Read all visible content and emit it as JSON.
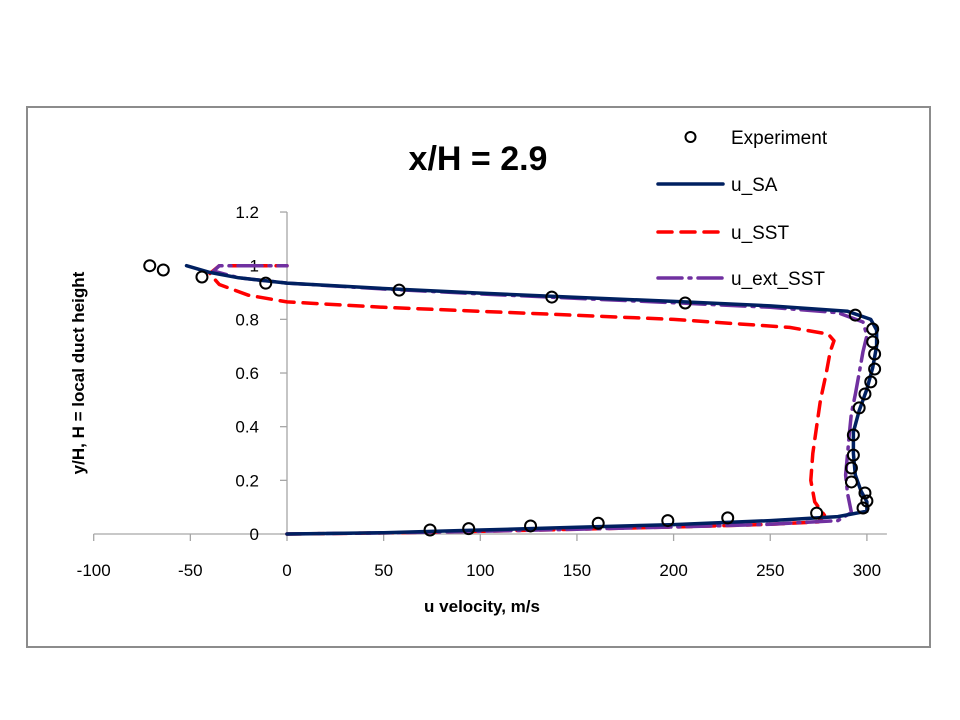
{
  "chart_data": {
    "type": "line",
    "title": "x/H = 2.9",
    "xlabel": "u velocity, m/s",
    "ylabel": "y/H, H = local duct height",
    "xlim": [
      -100,
      300
    ],
    "ylim": [
      0,
      1.2
    ],
    "x_ticks": [
      -100,
      -50,
      0,
      50,
      100,
      150,
      200,
      250,
      300
    ],
    "x_tick_labels": [
      "-100",
      "-50",
      "0",
      "50",
      "100",
      "150",
      "200",
      "250",
      "300"
    ],
    "y_ticks": [
      0,
      0.2,
      0.4,
      0.6,
      0.8,
      1.0,
      1.2
    ],
    "y_tick_labels": [
      "0",
      "0.2",
      "0.4",
      "0.6",
      "0.8",
      "1",
      "1.2"
    ],
    "grid": false,
    "legend_position": "top-right",
    "series": [
      {
        "name": "Experiment",
        "style": "markers-open-circle",
        "color": "#000000",
        "points": [
          [
            74,
            0.015
          ],
          [
            94,
            0.02
          ],
          [
            126,
            0.03
          ],
          [
            161,
            0.04
          ],
          [
            197,
            0.05
          ],
          [
            228,
            0.06
          ],
          [
            274,
            0.078
          ],
          [
            298,
            0.097
          ],
          [
            300,
            0.123
          ],
          [
            299,
            0.153
          ],
          [
            292,
            0.194
          ],
          [
            292,
            0.246
          ],
          [
            293,
            0.294
          ],
          [
            293,
            0.369
          ],
          [
            296,
            0.47
          ],
          [
            299,
            0.522
          ],
          [
            302,
            0.567
          ],
          [
            304,
            0.615
          ],
          [
            304,
            0.671
          ],
          [
            303,
            0.716
          ],
          [
            303,
            0.764
          ],
          [
            294,
            0.816
          ],
          [
            206,
            0.861
          ],
          [
            137,
            0.883
          ],
          [
            58,
            0.909
          ],
          [
            -11,
            0.935
          ],
          [
            -44,
            0.958
          ],
          [
            -64,
            0.984
          ],
          [
            -71,
            1.0
          ]
        ]
      },
      {
        "name": "u_SA",
        "style": "solid",
        "color": "#002060",
        "points": [
          [
            0,
            0.0
          ],
          [
            50,
            0.005
          ],
          [
            100,
            0.015
          ],
          [
            150,
            0.025
          ],
          [
            200,
            0.035
          ],
          [
            250,
            0.05
          ],
          [
            285,
            0.065
          ],
          [
            300,
            0.085
          ],
          [
            300,
            0.12
          ],
          [
            297,
            0.16
          ],
          [
            294,
            0.22
          ],
          [
            293,
            0.3
          ],
          [
            293,
            0.38
          ],
          [
            296,
            0.46
          ],
          [
            300,
            0.54
          ],
          [
            303,
            0.62
          ],
          [
            305,
            0.7
          ],
          [
            305,
            0.76
          ],
          [
            302,
            0.8
          ],
          [
            290,
            0.83
          ],
          [
            250,
            0.85
          ],
          [
            200,
            0.867
          ],
          [
            150,
            0.882
          ],
          [
            100,
            0.898
          ],
          [
            50,
            0.915
          ],
          [
            0,
            0.935
          ],
          [
            -25,
            0.955
          ],
          [
            -40,
            0.975
          ],
          [
            -52,
            1.0
          ]
        ]
      },
      {
        "name": "u_SST",
        "style": "dashed",
        "color": "#ff0000",
        "points": [
          [
            0,
            0.0
          ],
          [
            50,
            0.004
          ],
          [
            100,
            0.01
          ],
          [
            150,
            0.018
          ],
          [
            200,
            0.026
          ],
          [
            250,
            0.036
          ],
          [
            275,
            0.045
          ],
          [
            278,
            0.07
          ],
          [
            273,
            0.12
          ],
          [
            271,
            0.2
          ],
          [
            272,
            0.3
          ],
          [
            274,
            0.4
          ],
          [
            276,
            0.5
          ],
          [
            279,
            0.6
          ],
          [
            281,
            0.68
          ],
          [
            283,
            0.72
          ],
          [
            280,
            0.745
          ],
          [
            260,
            0.77
          ],
          [
            200,
            0.8
          ],
          [
            150,
            0.815
          ],
          [
            100,
            0.83
          ],
          [
            50,
            0.845
          ],
          [
            0,
            0.865
          ],
          [
            -20,
            0.89
          ],
          [
            -35,
            0.93
          ],
          [
            -40,
            0.97
          ],
          [
            -35,
            1.0
          ],
          [
            0,
            1.0
          ]
        ]
      },
      {
        "name": "u_ext_SST",
        "style": "dash-dot",
        "color": "#7030a0",
        "points": [
          [
            0,
            0.0
          ],
          [
            50,
            0.004
          ],
          [
            100,
            0.01
          ],
          [
            150,
            0.018
          ],
          [
            200,
            0.026
          ],
          [
            250,
            0.036
          ],
          [
            285,
            0.05
          ],
          [
            292,
            0.08
          ],
          [
            290,
            0.15
          ],
          [
            289,
            0.22
          ],
          [
            290,
            0.3
          ],
          [
            291,
            0.38
          ],
          [
            292,
            0.45
          ],
          [
            294,
            0.52
          ],
          [
            296,
            0.6
          ],
          [
            298,
            0.68
          ],
          [
            300,
            0.74
          ],
          [
            298,
            0.79
          ],
          [
            285,
            0.825
          ],
          [
            250,
            0.845
          ],
          [
            200,
            0.862
          ],
          [
            150,
            0.878
          ],
          [
            100,
            0.895
          ],
          [
            50,
            0.913
          ],
          [
            0,
            0.935
          ],
          [
            -25,
            0.955
          ],
          [
            -38,
            0.98
          ],
          [
            -35,
            1.0
          ],
          [
            0,
            1.0
          ]
        ]
      }
    ]
  }
}
